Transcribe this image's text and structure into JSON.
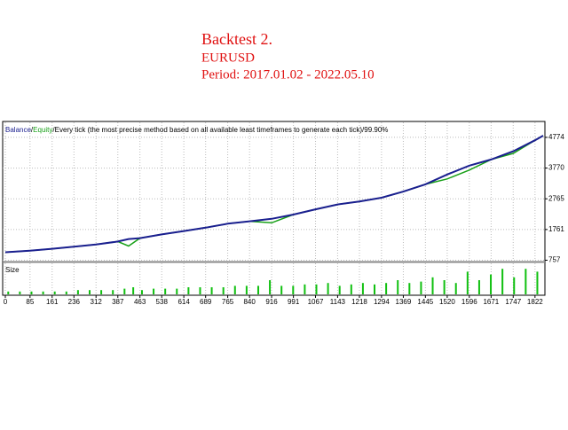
{
  "header": {
    "title": "Backtest 2.",
    "symbol": "EURUSD",
    "period": "Period: 2017.01.02 - 2022.05.10"
  },
  "chart_data": [
    {
      "type": "line",
      "legend_separator": "/",
      "note": "Every tick (the most precise method based on all available least timeframes to generate each tick)",
      "quality": "99.90%",
      "x": [
        0,
        85,
        161,
        236,
        312,
        387,
        424,
        463,
        538,
        614,
        689,
        765,
        840,
        916,
        991,
        1067,
        1143,
        1218,
        1294,
        1369,
        1445,
        1520,
        1596,
        1671,
        1747,
        1822,
        1850
      ],
      "series": [
        {
          "name": "Balance",
          "color": "#1a1f8f",
          "values": [
            1017,
            1070,
            1130,
            1200,
            1270,
            1370,
            1450,
            1480,
            1600,
            1710,
            1820,
            1950,
            2030,
            2110,
            2250,
            2420,
            2580,
            2680,
            2800,
            3000,
            3240,
            3560,
            3850,
            4050,
            4320,
            4680,
            4830
          ]
        },
        {
          "name": "Equity",
          "color": "#18a018",
          "values": [
            1017,
            1070,
            1130,
            1200,
            1270,
            1370,
            1220,
            1480,
            1600,
            1710,
            1820,
            1950,
            2030,
            1980,
            2250,
            2420,
            2580,
            2680,
            2800,
            3000,
            3240,
            3416,
            3704,
            4050,
            4250,
            4680,
            4830
          ]
        }
      ],
      "xlim": [
        0,
        1850
      ],
      "xticks": [
        0,
        85,
        161,
        236,
        312,
        387,
        463,
        538,
        614,
        689,
        765,
        840,
        916,
        991,
        1067,
        1143,
        1218,
        1294,
        1369,
        1445,
        1520,
        1596,
        1671,
        1747,
        1822
      ],
      "ylim": [
        728,
        5265
      ],
      "yticks": [
        757,
        1761,
        2765,
        3770,
        4774
      ],
      "grid": true
    },
    {
      "type": "bar",
      "title": "Size",
      "color": "#10c010",
      "x": [
        10,
        50,
        90,
        130,
        170,
        210,
        250,
        290,
        330,
        370,
        410,
        440,
        470,
        510,
        550,
        590,
        630,
        670,
        710,
        750,
        790,
        830,
        870,
        910,
        950,
        990,
        1030,
        1070,
        1110,
        1150,
        1190,
        1230,
        1270,
        1310,
        1350,
        1390,
        1430,
        1470,
        1510,
        1550,
        1590,
        1630,
        1670,
        1710,
        1750,
        1790,
        1830
      ],
      "values": [
        1,
        1,
        1,
        1,
        1,
        1,
        1.5,
        1.5,
        1.5,
        1.5,
        2,
        2.5,
        1.5,
        2,
        2,
        2,
        2.5,
        2.5,
        2.5,
        2.5,
        3,
        3,
        3,
        5,
        3,
        3,
        3.5,
        3.5,
        4,
        3,
        3.5,
        4,
        3.5,
        4,
        5,
        4,
        4.5,
        6,
        5,
        4,
        8,
        5,
        7,
        9,
        6,
        9,
        8
      ],
      "xlim": [
        0,
        1850
      ],
      "ylim": [
        0,
        10
      ]
    }
  ]
}
